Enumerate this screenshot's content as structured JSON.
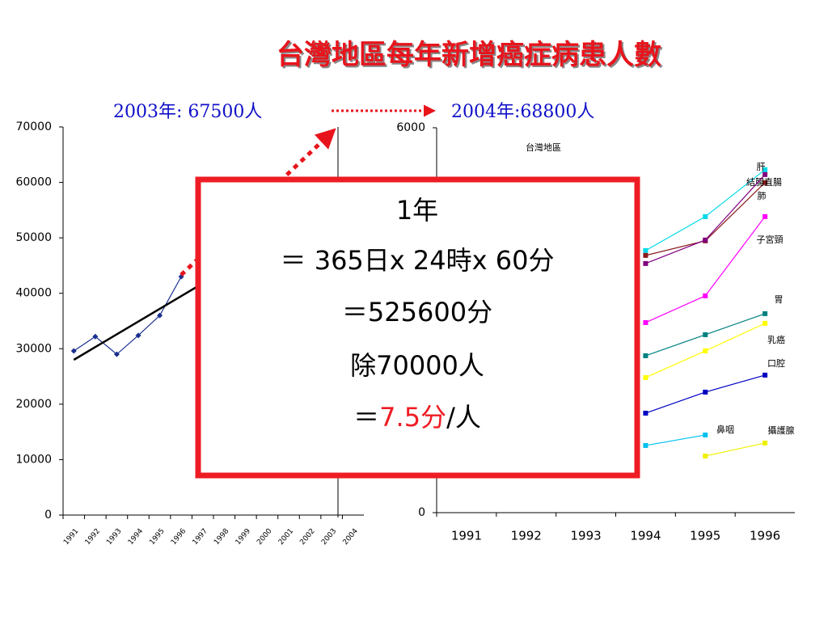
{
  "title": "台灣地區每年新增癌症病患人數",
  "annotations": [
    "2003年: 67500人",
    "2004年:68800人"
  ],
  "box": {
    "lines": [
      "1年",
      "＝ 365日x 24時x 60分",
      "＝525600分",
      "除70000人"
    ],
    "last": [
      "＝",
      "7.5分",
      "/人"
    ]
  },
  "chart_data": [
    {
      "type": "line",
      "categories": [
        "1991",
        "1992",
        "1993",
        "1994",
        "1995",
        "1996",
        "1997",
        "1998",
        "1999",
        "2000",
        "2001",
        "2002",
        "2003",
        "2004"
      ],
      "series": [
        {
          "color": "#1a2f8f",
          "marker": "diamond",
          "values": [
            29600,
            32200,
            29000,
            32400,
            36000,
            43000,
            null,
            null,
            null,
            null,
            null,
            null,
            null,
            null
          ]
        },
        {
          "color": "#000000",
          "values": [
            28000,
            30300,
            32600,
            34900,
            37200,
            39500,
            41800,
            null,
            null,
            null,
            null,
            null,
            null,
            null
          ]
        }
      ],
      "ylim": [
        0,
        70000
      ],
      "yticks": [
        0,
        10000,
        20000,
        30000,
        40000,
        50000,
        60000,
        70000
      ]
    },
    {
      "type": "line",
      "title": "台灣地區",
      "categories": [
        "1991",
        "1992",
        "1993",
        "1994",
        "1995",
        "1996"
      ],
      "series": [
        {
          "name": "肝",
          "color": "#00d8e8",
          "values": [
            null,
            null,
            null,
            4086,
            4615,
            5347
          ]
        },
        {
          "name": "結腸直腸",
          "color": "#8b1a1a",
          "values": [
            null,
            null,
            null,
            4010,
            4237,
            5145
          ]
        },
        {
          "name": "肺",
          "color": "#800080",
          "values": [
            null,
            null,
            null,
            3884,
            4250,
            5271
          ]
        },
        {
          "name": "子宮頸",
          "color": "#ff00ff",
          "values": [
            null,
            null,
            null,
            2963,
            3380,
            4615
          ]
        },
        {
          "name": "胃",
          "color": "#008080",
          "values": [
            null,
            null,
            null,
            2446,
            2774,
            3102
          ]
        },
        {
          "name": "乳癌",
          "color": "#ffff00",
          "values": [
            null,
            null,
            null,
            2106,
            2522,
            2951
          ]
        },
        {
          "name": "口腔",
          "color": "#0000c0",
          "values": [
            null,
            null,
            null,
            1551,
            1879,
            2144
          ]
        },
        {
          "name": "鼻咽",
          "color": "#00c0f0",
          "values": [
            null,
            null,
            null,
            1047,
            1211,
            null
          ]
        },
        {
          "name": "攝護腺",
          "color": "#f0f000",
          "values": [
            null,
            null,
            null,
            null,
            883,
            1085
          ]
        }
      ],
      "ylim": [
        0,
        6000
      ],
      "yticks": [
        0,
        6000
      ]
    }
  ]
}
